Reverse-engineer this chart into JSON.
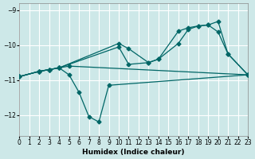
{
  "xlabel": "Humidex (Indice chaleur)",
  "xlim": [
    0,
    23
  ],
  "ylim": [
    -12.6,
    -8.8
  ],
  "yticks": [
    -12,
    -11,
    -10,
    -9
  ],
  "xticks": [
    0,
    1,
    2,
    3,
    4,
    5,
    6,
    7,
    8,
    9,
    10,
    11,
    12,
    13,
    14,
    15,
    16,
    17,
    18,
    19,
    20,
    21,
    22,
    23
  ],
  "background_color": "#cde8e8",
  "grid_color": "#ffffff",
  "line_color": "#006666",
  "lines": [
    {
      "x": [
        0,
        2,
        3,
        4,
        5,
        23
      ],
      "y": [
        -10.9,
        -10.75,
        -10.7,
        -10.65,
        -10.6,
        -10.85
      ]
    },
    {
      "x": [
        0,
        2,
        3,
        4,
        5,
        6,
        7,
        8,
        9,
        23
      ],
      "y": [
        -10.9,
        -10.75,
        -10.7,
        -10.65,
        -10.85,
        -11.35,
        -12.05,
        -12.2,
        -11.15,
        -10.85
      ]
    },
    {
      "x": [
        0,
        2,
        3,
        4,
        10,
        11,
        13,
        14,
        16,
        17,
        18,
        19,
        20,
        21,
        23
      ],
      "y": [
        -10.9,
        -10.75,
        -10.7,
        -10.65,
        -9.95,
        -10.1,
        -10.5,
        -10.4,
        -9.6,
        -9.5,
        -9.45,
        -9.42,
        -9.32,
        -10.25,
        -10.85
      ]
    },
    {
      "x": [
        0,
        2,
        3,
        4,
        10,
        11,
        13,
        14,
        16,
        17,
        18,
        19,
        20,
        21,
        23
      ],
      "y": [
        -10.9,
        -10.75,
        -10.7,
        -10.65,
        -10.05,
        -10.55,
        -10.5,
        -10.4,
        -9.95,
        -9.55,
        -9.45,
        -9.42,
        -9.62,
        -10.25,
        -10.85
      ]
    }
  ]
}
